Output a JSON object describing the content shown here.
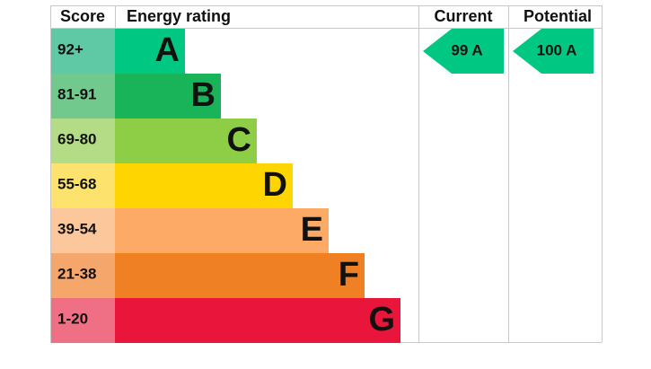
{
  "header": {
    "score": "Score",
    "energy_rating": "Energy rating",
    "current": "Current",
    "potential": "Potential"
  },
  "rows": [
    {
      "score": "92+",
      "letter": "A",
      "color": "#00c781",
      "light": "#5fc8a4"
    },
    {
      "score": "81-91",
      "letter": "B",
      "color": "#19b459",
      "light": "#72c98e"
    },
    {
      "score": "69-80",
      "letter": "C",
      "color": "#8dce46",
      "light": "#b4dc87"
    },
    {
      "score": "55-68",
      "letter": "D",
      "color": "#ffd500",
      "light": "#fde36d"
    },
    {
      "score": "39-54",
      "letter": "E",
      "color": "#fcaa65",
      "light": "#fdc79c"
    },
    {
      "score": "21-38",
      "letter": "F",
      "color": "#ef8023",
      "light": "#f4a66b"
    },
    {
      "score": "1-20",
      "letter": "G",
      "color": "#e9153b",
      "light": "#ef7084"
    }
  ],
  "current": {
    "label": "99 A",
    "row": 0
  },
  "potential": {
    "label": "100 A",
    "row": 0
  }
}
